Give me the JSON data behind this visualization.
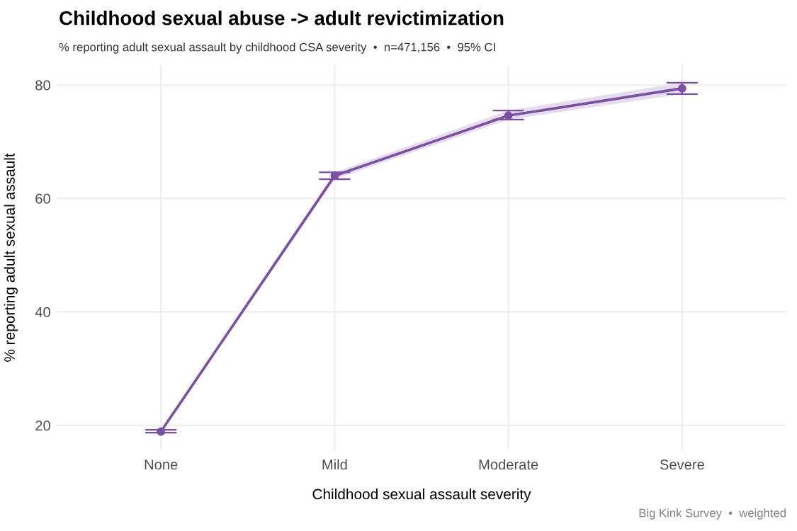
{
  "chart_data": {
    "type": "line",
    "title": "Childhood sexual abuse -> adult revictimization",
    "subtitle": "% reporting adult sexual assault by childhood CSA severity  •  n=471,156  •  95% CI",
    "xlabel": "Childhood sexual assault severity",
    "ylabel": "% reporting adult sexual assault",
    "categories": [
      "None",
      "Mild",
      "Moderate",
      "Severe"
    ],
    "series": [
      {
        "color": "#7b4fa3",
        "values": [
          18.9,
          64.0,
          74.6,
          79.4
        ],
        "errors": [
          [
            18.7,
            19.2
          ],
          [
            63.4,
            64.6
          ],
          [
            73.9,
            75.5
          ],
          [
            78.4,
            80.4
          ]
        ],
        "lower": [
          18.7,
          63.4,
          73.9,
          78.4
        ],
        "upper": [
          19.2,
          64.6,
          75.5,
          80.4
        ]
      }
    ],
    "ylim": [
      15.6,
      83.5
    ],
    "yticks": [
      20,
      40,
      60,
      80
    ],
    "grid": true,
    "marker": "circle",
    "line_style": "solid",
    "annotations": [
      "Big Kink Survey  •  weighted"
    ]
  }
}
